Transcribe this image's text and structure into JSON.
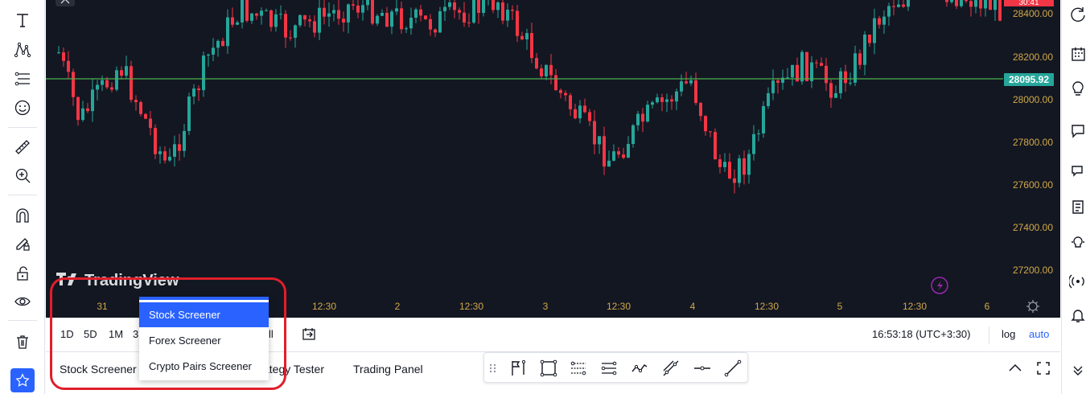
{
  "left_toolbar": {
    "tools": [
      {
        "name": "text-icon"
      },
      {
        "name": "pattern-icon"
      },
      {
        "name": "fib-icon"
      },
      {
        "name": "emoji-icon"
      },
      {
        "name": "ruler-icon"
      },
      {
        "name": "zoom-in-icon"
      },
      {
        "name": "magnet-icon"
      },
      {
        "name": "lock-drawing-icon"
      },
      {
        "name": "unlock-icon"
      },
      {
        "name": "eye-icon"
      },
      {
        "name": "trash-icon"
      },
      {
        "name": "star-icon"
      }
    ]
  },
  "chart": {
    "watermark": "TradingView",
    "price_axis": [
      "28400.00",
      "28200.00",
      "28000.00",
      "27800.00",
      "27600.00",
      "27400.00",
      "27200.00"
    ],
    "current_price": "28095.92",
    "countdown": "30:41",
    "time_axis": [
      "31",
      "12:30",
      "2",
      "12:30",
      "3",
      "12:30",
      "4",
      "12:30",
      "5",
      "12:30",
      "6"
    ],
    "colors": {
      "up": "#26a69a",
      "down": "#f23645",
      "background": "#131722",
      "price_line": "#4caf50",
      "axis_text": "#d1a84a"
    }
  },
  "range_bar": {
    "buttons": [
      "1D",
      "5D",
      "1M",
      "3"
    ],
    "hidden_tail": "ll",
    "clock": "16:53:18 (UTC+3:30)",
    "log_label": "log",
    "auto_label": "auto"
  },
  "bottom_bar": {
    "tabs": [
      "Stock Screener",
      "ategy Tester",
      "Trading Panel"
    ]
  },
  "screener_menu": {
    "items": [
      "Stock Screener",
      "Forex Screener",
      "Crypto Pairs Screener"
    ],
    "selected": "Stock Screener"
  },
  "drawing_toolbar": {
    "tools": [
      "drag-handle-icon",
      "flag-icon",
      "rectangle-icon",
      "fib-retracement-icon",
      "parallel-channel-icon",
      "path-icon",
      "trend-line-icon",
      "horizontal-ray-icon",
      "line-icon"
    ]
  }
}
